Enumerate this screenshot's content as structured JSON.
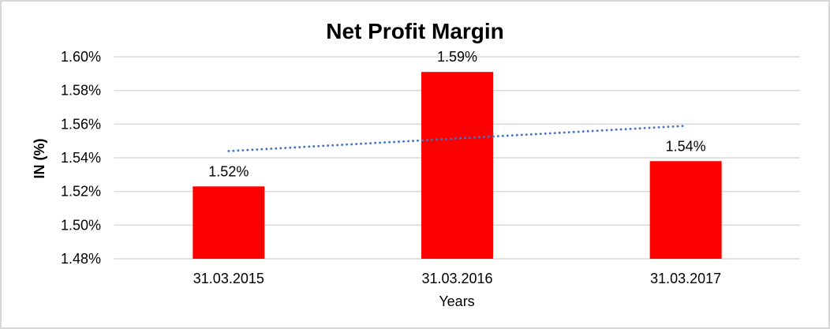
{
  "window": {
    "background": "#ffffff",
    "border_color": "#d8d8d8"
  },
  "chart_data": {
    "type": "bar",
    "title": "Net Profit Margin",
    "xlabel": "Years",
    "ylabel": "IN (%)",
    "categories": [
      "31.03.2015",
      "31.03.2016",
      "31.03.2017"
    ],
    "values": [
      1.523,
      1.591,
      1.538
    ],
    "data_labels": [
      "1.52%",
      "1.59%",
      "1.54%"
    ],
    "unit": "percent",
    "ylim": [
      1.48,
      1.6
    ],
    "y_ticks": [
      1.48,
      1.5,
      1.52,
      1.54,
      1.56,
      1.58,
      1.6
    ],
    "y_tick_labels": [
      "1.48%",
      "1.50%",
      "1.52%",
      "1.54%",
      "1.56%",
      "1.58%",
      "1.60%"
    ],
    "grid": true,
    "legend": "none",
    "bar_color": "#ff0000",
    "gridline_color": "#d9d9d9",
    "text_color": "#000000",
    "trendline": {
      "style": "dotted",
      "color": "#4472c4",
      "start_value": 1.544,
      "end_value": 1.559
    }
  }
}
